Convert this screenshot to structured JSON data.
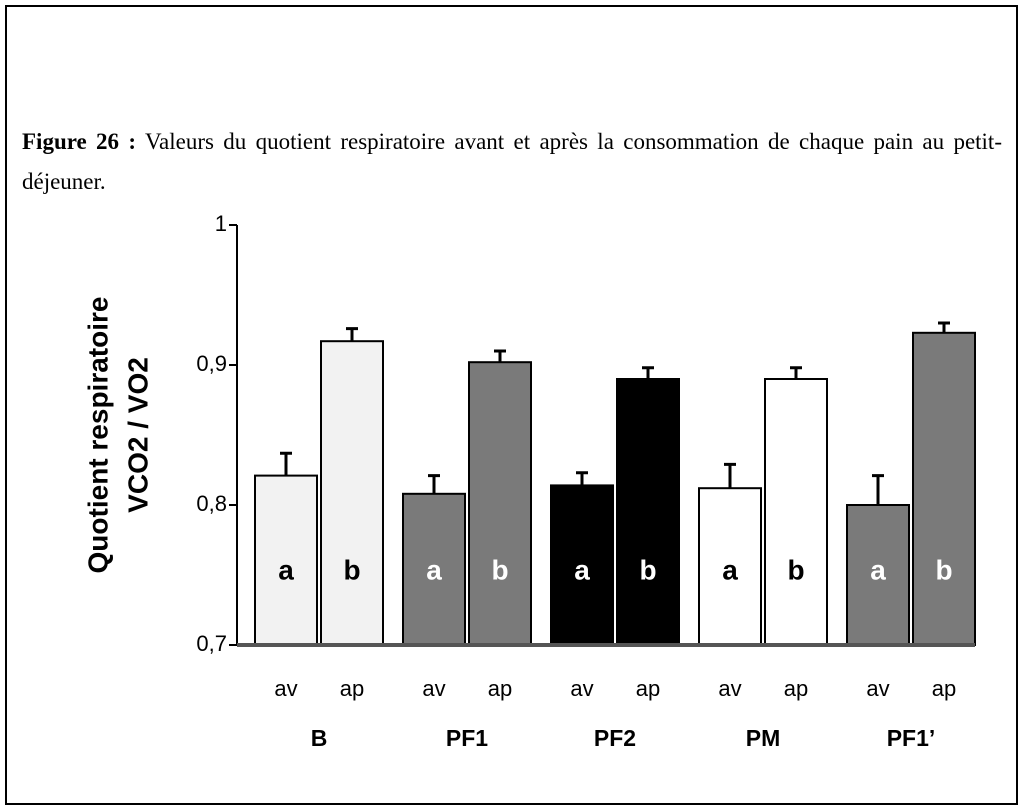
{
  "caption": {
    "label": "Figure 26 :",
    "text": "Valeurs du quotient respiratoire avant et après la consommation de chaque pain au petit-déjeuner."
  },
  "chart_data": {
    "type": "bar",
    "ylabel": [
      "Quotient respiratoire",
      "VCO2 / VO2"
    ],
    "categories": [
      "av",
      "ap",
      "av",
      "ap",
      "av",
      "ap",
      "av",
      "ap",
      "av",
      "ap"
    ],
    "groups": [
      "B",
      "PF1",
      "PF2",
      "PM",
      "PF1’"
    ],
    "group_colors": [
      "#f2f2f2",
      "#7a7a7a",
      "#000000",
      "#ffffff",
      "#7a7a7a"
    ],
    "values": [
      0.821,
      0.917,
      0.808,
      0.902,
      0.814,
      0.89,
      0.812,
      0.89,
      0.8,
      0.923
    ],
    "errors": [
      0.016,
      0.009,
      0.013,
      0.008,
      0.009,
      0.008,
      0.017,
      0.008,
      0.021,
      0.007
    ],
    "bar_labels": [
      "a",
      "b",
      "a",
      "b",
      "a",
      "b",
      "a",
      "b",
      "a",
      "b"
    ],
    "ylim": [
      0.7,
      1
    ],
    "yticks": [
      {
        "value": 0.7,
        "label": "0,7"
      },
      {
        "value": 0.8,
        "label": "0,8"
      },
      {
        "value": 0.9,
        "label": "0,9"
      },
      1
    ]
  }
}
